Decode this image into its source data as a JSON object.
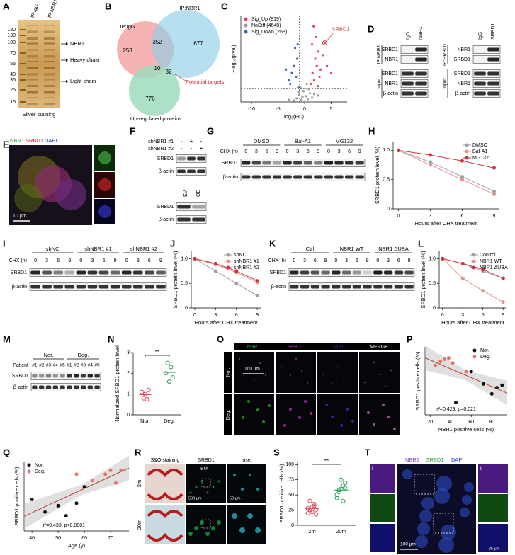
{
  "panel_labels": [
    "A",
    "B",
    "C",
    "D",
    "E",
    "F",
    "G",
    "H",
    "I",
    "J",
    "K",
    "L",
    "M",
    "N",
    "O",
    "P",
    "Q",
    "R",
    "S",
    "T"
  ],
  "A": {
    "ladder": [
      180,
      130,
      100,
      70,
      55,
      40,
      35,
      25,
      15
    ],
    "lanes": [
      "IP:IgG",
      "IP:NBR1"
    ],
    "arrows": [
      "NBR1",
      "Heavy chain",
      "Light chain"
    ],
    "caption": "Silver staining"
  },
  "B": {
    "sets": [
      "IP:IgG",
      "IP:NBR1"
    ],
    "regions": [
      253,
      352,
      677,
      10,
      32,
      776
    ],
    "arrow_label": "Potential targets",
    "bottom_label": "Up-regulated proteins"
  },
  "D": {
    "left": {
      "lanes": [
        "IgG",
        "NBR1"
      ],
      "groups": [
        "IP:NBR1",
        "Input"
      ],
      "rows": [
        "SRBD1",
        "NBR1",
        "SRBD1",
        "NBR1",
        "β-actin"
      ]
    },
    "right": {
      "lanes": [
        "IgG",
        "SRBD1"
      ],
      "groups": [
        "IP:SRBD1",
        "Input"
      ],
      "rows": [
        "NBR1",
        "SRBD1",
        "SRBD1",
        "NBR1",
        "β-actin"
      ]
    }
  },
  "E": {
    "channels": [
      "NBR1",
      "SRBD1",
      "DAPI"
    ],
    "scale": "10 μm"
  },
  "F": {
    "conditions": [
      "shNBR1 #1",
      "shNBR1 #2"
    ],
    "marks": [
      [
        "-",
        "+",
        "-"
      ],
      [
        "-",
        "-",
        "+"
      ]
    ],
    "rows": [
      "SRBD1",
      "β-actin"
    ],
    "lanes2": [
      "EV",
      "OE"
    ],
    "rows2": [
      "SRBD1",
      "β-actin"
    ]
  },
  "G": {
    "groups": [
      "DMSO",
      "Baf-A1",
      "MG132"
    ],
    "time_label": "CHX (h)",
    "times": [
      0,
      3,
      6,
      9
    ],
    "rows": [
      "SRBD1",
      "β-actin"
    ]
  },
  "I": {
    "groups": [
      "shNC",
      "shNBR1 #1",
      "shNBR1 #2"
    ],
    "time_label": "CHX (h)",
    "times": [
      0,
      3,
      6,
      9
    ],
    "rows": [
      "SRBD1",
      "β-actin"
    ]
  },
  "K": {
    "groups": [
      "Ctrl",
      "NBR1 WT",
      "NBR1 ΔUBA"
    ],
    "time_label": "CHX (h)",
    "times": [
      0,
      3,
      6,
      9
    ],
    "rows": [
      "SRBD1",
      "β-actin"
    ]
  },
  "M": {
    "row_label": "Patient",
    "groups": [
      "Nor.",
      "Deg."
    ],
    "lanes": [
      "#1",
      "#2",
      "#3",
      "#4",
      "#5"
    ],
    "rows": [
      "SRBD1",
      "β-actin"
    ]
  },
  "O": {
    "columns": [
      "NBR1",
      "SRBD1",
      "DAPI",
      "MERGE"
    ],
    "rows": [
      "Nor.",
      "Deg."
    ],
    "scale": "100 μm"
  },
  "R": {
    "columns": [
      "S&O staining",
      "SRBD1",
      "Inset"
    ],
    "rows": [
      "2m",
      "20m"
    ],
    "annotation": "BM",
    "scales": [
      "500 μm",
      "50 μm"
    ]
  },
  "T": {
    "channels": [
      "NBR1",
      "SRBD1",
      "DAPI"
    ],
    "insets": [
      "i",
      "ii"
    ],
    "scales": [
      "100 μm",
      "25 μm"
    ]
  },
  "chart_data": [
    {
      "type": "scatter",
      "xlabel": "log₂(FC)",
      "ylabel": "−log₁₀(pVal)",
      "xlim": [
        -12,
        8
      ],
      "ylim": [
        0,
        12
      ],
      "xticks": [
        -10,
        -5,
        0,
        5
      ],
      "legend": "top-left",
      "annotation": "SRBD1",
      "series": [
        {
          "name": "Sig_Up (819)",
          "color": "#d9475b",
          "x": [
            1.2,
            1.5,
            1.8,
            2.0,
            2.3,
            2.6,
            3.0,
            1.4,
            2.1,
            2.8,
            3.5,
            4.2,
            1.7,
            2.5,
            5.0,
            3.8
          ],
          "values": [
            2.5,
            4,
            3,
            6,
            5,
            7,
            4.5,
            8,
            9,
            3.5,
            6.5,
            5,
            10.5,
            2.2,
            4,
            8.2
          ]
        },
        {
          "name": "NoDiff (4648)",
          "color": "#9a9a9a",
          "x": [
            -1.5,
            -1,
            -0.6,
            -0.2,
            0.2,
            0.6,
            1,
            1.4,
            -0.8,
            0.4,
            -2,
            1.8,
            0,
            -0.4,
            0.8,
            -1.2,
            2.5,
            -3
          ],
          "values": [
            0.5,
            1,
            0.3,
            1.5,
            0.8,
            0.4,
            1.2,
            0.6,
            2,
            2.5,
            0.2,
            1.1,
            0.1,
            0.7,
            1.8,
            1.4,
            0.9,
            0.3
          ]
        },
        {
          "name": "Sig_Down (263)",
          "color": "#3a66b8",
          "x": [
            -1.2,
            -1.6,
            -2,
            -2.4,
            -3,
            -1.4,
            -1.8,
            -2.7,
            -3.5,
            -1.3
          ],
          "values": [
            2,
            3.5,
            5,
            4,
            3,
            6,
            7.5,
            2.5,
            4.5,
            8
          ]
        }
      ]
    },
    {
      "type": "line",
      "xlabel": "Hours after CHX treatment",
      "ylabel": "SRBD1 protein level (%)",
      "x": [
        0,
        3,
        6,
        9
      ],
      "xlim": [
        -0.5,
        9.5
      ],
      "ylim": [
        0,
        1.15
      ],
      "xticks": [
        0,
        3,
        6,
        9
      ],
      "yticks": [
        0,
        0.5,
        {
          "value": 1,
          "label": "1.0"
        }
      ],
      "legend": "top-right",
      "series": [
        {
          "name": "DMSO",
          "color": "#a0a0a0",
          "values": [
            1,
            0.8,
            0.55,
            0.3
          ]
        },
        {
          "name": "Baf-A1",
          "color": "#e89090",
          "values": [
            1,
            0.75,
            0.5,
            0.25
          ]
        },
        {
          "name": "MG132",
          "color": "#cc3344",
          "values": [
            1,
            0.92,
            0.82,
            0.7
          ]
        }
      ]
    },
    {
      "type": "line",
      "xlabel": "Hours after CHX treatment",
      "ylabel": "SRBD1 protein level (%)",
      "x": [
        0,
        3,
        6,
        9
      ],
      "xlim": [
        -0.5,
        9.5
      ],
      "ylim": [
        0,
        1.15
      ],
      "xticks": [
        0,
        3,
        6,
        9
      ],
      "yticks": [
        0,
        0.5,
        {
          "value": 1,
          "label": "1.0"
        }
      ],
      "legend": "top-right",
      "series": [
        {
          "name": "shNC",
          "color": "#a0a0a0",
          "values": [
            1,
            0.75,
            0.5,
            0.25
          ]
        },
        {
          "name": "shNBR1 #1",
          "color": "#e89090",
          "values": [
            1,
            0.88,
            0.72,
            0.52
          ]
        },
        {
          "name": "shNBR1 #2",
          "color": "#cc3344",
          "values": [
            1,
            0.9,
            0.75,
            0.55
          ]
        }
      ]
    },
    {
      "type": "line",
      "xlabel": "Hours after CHX treatment",
      "ylabel": "SRBD1 protein level (%)",
      "x": [
        0,
        3,
        6,
        9
      ],
      "xlim": [
        -0.5,
        9.5
      ],
      "ylim": [
        0,
        1.15
      ],
      "xticks": [
        0,
        3,
        6,
        9
      ],
      "yticks": [
        0,
        0.5,
        {
          "value": 1,
          "label": "1.0"
        }
      ],
      "legend": "top-right",
      "series": [
        {
          "name": "Control",
          "color": "#a0a0a0",
          "values": [
            1,
            0.9,
            0.75,
            0.6
          ]
        },
        {
          "name": "NBR1 WT",
          "color": "#e89090",
          "values": [
            1,
            0.6,
            0.35,
            0.12
          ]
        },
        {
          "name": "NBR1 ΔUBA",
          "color": "#cc3344",
          "values": [
            1,
            0.9,
            0.78,
            0.6
          ]
        }
      ]
    },
    {
      "type": "strip",
      "ylabel": "Normalized SRBD1 protein level",
      "categories": [
        "Nor.",
        "Deg."
      ],
      "values": [
        [
          1.1,
          0.8,
          1.0,
          0.75,
          1.2
        ],
        [
          2.0,
          2.5,
          1.6,
          2.3,
          1.8
        ]
      ],
      "colors": [
        "#d9475b",
        "#2e9e5b"
      ],
      "ylim": [
        0,
        3
      ],
      "yticks": [
        0,
        1,
        2,
        3
      ],
      "annotation": "**"
    },
    {
      "type": "scatter",
      "xlabel": "NBR1 positive cells (%)",
      "ylabel": "SRBD1 positive cells (%)",
      "xlim": [
        15,
        95
      ],
      "ylim": [
        10,
        65
      ],
      "xticks": [
        20,
        40,
        60,
        80
      ],
      "legend": "top-right",
      "fit": true,
      "annotation": "r²=0.429, p=0.021",
      "series": [
        {
          "name": "Nor.",
          "color": "#111111",
          "x": [
            45,
            60,
            72,
            80,
            85,
            90
          ],
          "values": [
            20,
            45,
            35,
            27,
            32,
            34
          ]
        },
        {
          "name": "Deg.",
          "color": "#e87070",
          "x": [
            25,
            30,
            34,
            38,
            42,
            55
          ],
          "values": [
            50,
            53,
            55,
            56,
            52,
            45
          ]
        }
      ]
    },
    {
      "type": "scatter",
      "xlabel": "Age (y)",
      "ylabel": "SRBD1 positive cells (%)",
      "xlim": [
        37,
        77
      ],
      "ylim": [
        10,
        65
      ],
      "xticks": [
        40,
        50,
        60,
        70
      ],
      "legend": "top-left",
      "fit": true,
      "annotation": "r²=0.433, p<0.0001",
      "series": [
        {
          "name": "Nor.",
          "color": "#111111",
          "x": [
            40,
            45,
            50,
            53,
            57,
            60
          ],
          "values": [
            35,
            25,
            30,
            22,
            32,
            45
          ]
        },
        {
          "name": "Deg.",
          "color": "#e87070",
          "x": [
            57,
            63,
            68,
            70,
            72,
            74
          ],
          "values": [
            55,
            50,
            55,
            58,
            48,
            58
          ]
        }
      ]
    },
    {
      "type": "strip",
      "ylabel": "SRBD1 positive cells (%)",
      "categories": [
        "2m",
        "20m"
      ],
      "values": [
        [
          20,
          25,
          30,
          35,
          18,
          28,
          40,
          22,
          32,
          26
        ],
        [
          45,
          55,
          60,
          65,
          70,
          50,
          58,
          75,
          40,
          62
        ]
      ],
      "colors": [
        "#d9475b",
        "#2e9e5b"
      ],
      "ylim": [
        0,
        105
      ],
      "yticks": [
        0,
        25,
        50,
        75,
        100
      ],
      "annotation": "**"
    }
  ]
}
